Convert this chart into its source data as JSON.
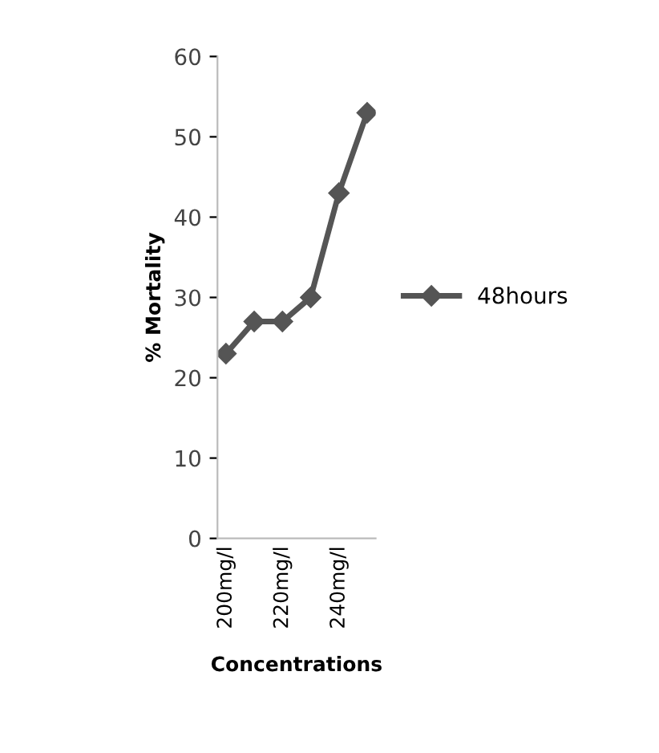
{
  "chart_data": {
    "type": "line",
    "xlabel": "Concentrations",
    "ylabel": "% Mortality",
    "categories": [
      "200mg/l",
      null,
      "220mg/l",
      null,
      "240mg/l",
      null
    ],
    "series": [
      {
        "name": "48hours",
        "color": "#555555",
        "values": [
          23,
          27,
          27,
          30,
          43,
          53
        ]
      }
    ],
    "ylim": [
      0,
      60
    ],
    "yticks": [
      0,
      10,
      20,
      30,
      40,
      50,
      60
    ],
    "marker": "diamond",
    "line_style": "solid",
    "legend": "right",
    "grid": false
  }
}
